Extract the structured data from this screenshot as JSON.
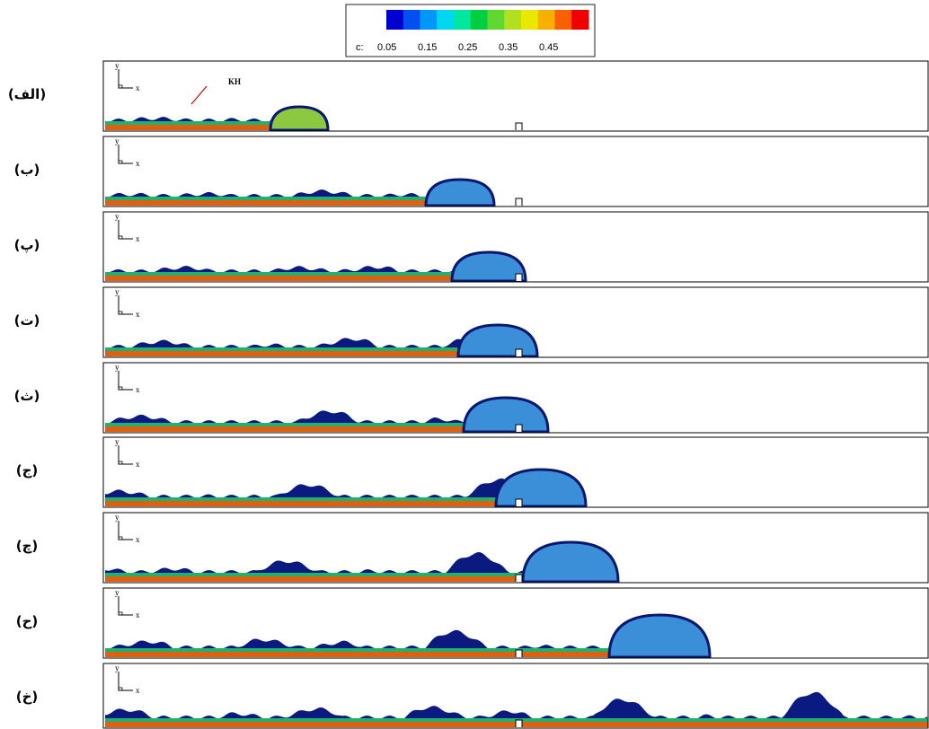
{
  "colorbar": {
    "variable": "c:",
    "ticks": [
      "0.05",
      "0.15",
      "0.25",
      "0.35",
      "0.45"
    ],
    "colors": [
      "#0000d0",
      "#0050f0",
      "#0098f8",
      "#00d8f0",
      "#00e8a0",
      "#00d040",
      "#60d830",
      "#b0e020",
      "#e8e800",
      "#f8b000",
      "#f86000",
      "#f00000"
    ]
  },
  "annotation": "KH",
  "axis_labels": {
    "x": "x",
    "y": "y"
  },
  "panels": [
    "(الف)",
    "(ب)",
    "(پ)",
    "(ت)",
    "(ث)",
    "(ج)",
    "(چ)",
    "(ح)",
    "(خ)"
  ]
}
